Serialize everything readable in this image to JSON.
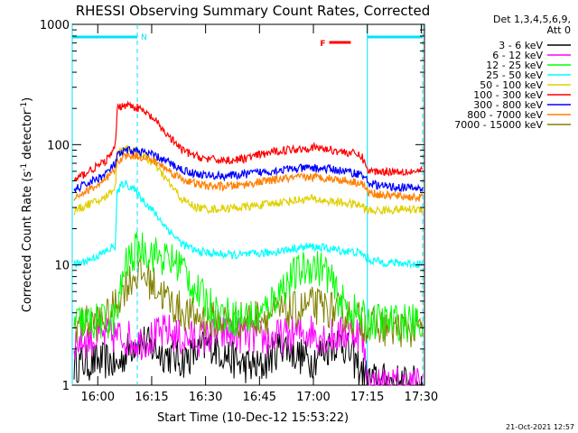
{
  "chart_data": {
    "type": "line",
    "title": "RHESSI Observing Summary Count Rates, Corrected",
    "xlabel": "Start Time (10-Dec-12 15:53:22)",
    "ylabel_main": "Corrected Count Rate (s",
    "ylabel_sup1": "-1",
    "ylabel_mid": " detector",
    "ylabel_sup2": "-1",
    "ylabel_end": ")",
    "yscale": "log",
    "xlim_min": [
      -0.5,
      97.5
    ],
    "ylim": [
      1,
      1000
    ],
    "x_ticks": [
      {
        "label": "16:00",
        "min": 6.6
      },
      {
        "label": "16:15",
        "min": 21.6
      },
      {
        "label": "16:30",
        "min": 36.6
      },
      {
        "label": "16:45",
        "min": 51.6
      },
      {
        "label": "17:00",
        "min": 66.6
      },
      {
        "label": "17:15",
        "min": 81.6
      },
      {
        "label": "17:30",
        "min": 96.6
      }
    ],
    "y_ticks": [
      {
        "label": "1",
        "value": 1
      },
      {
        "label": "10",
        "value": 10
      },
      {
        "label": "100",
        "value": 100
      },
      {
        "label": "1000",
        "value": 1000
      }
    ],
    "legend_header": [
      "Det 1,3,4,5,6,9,",
      "Att 0"
    ],
    "legend_placement": "right",
    "series": [
      {
        "name": "3 - 6 keV",
        "color": "#000000",
        "x": [
          0,
          10,
          12,
          14,
          18,
          22,
          30,
          38,
          46,
          52,
          58,
          62,
          66,
          70,
          74,
          78,
          80,
          82,
          97
        ],
        "y": [
          1.5,
          1.6,
          1.4,
          1.8,
          2.5,
          2.0,
          1.6,
          2.2,
          1.5,
          1.4,
          2.2,
          1.8,
          1.6,
          2.0,
          2.4,
          1.6,
          1.3,
          1.1,
          1.0
        ]
      },
      {
        "name": "6 - 12 keV",
        "color": "#ff00ff",
        "x": [
          0,
          10,
          14,
          18,
          22,
          26,
          30,
          36,
          42,
          48,
          54,
          60,
          66,
          70,
          74,
          78,
          80,
          82,
          97
        ],
        "y": [
          2.3,
          2.6,
          2.5,
          2.3,
          2.5,
          2.8,
          2.4,
          2.5,
          2.7,
          2.6,
          2.4,
          2.6,
          2.8,
          2.5,
          2.6,
          2.9,
          2.6,
          1.0,
          1.0
        ]
      },
      {
        "name": "12 - 25 keV",
        "color": "#00ff00",
        "x": [
          0,
          10,
          12,
          14,
          18,
          22,
          26,
          30,
          34,
          40,
          46,
          52,
          58,
          62,
          66,
          70,
          74,
          78,
          80,
          82,
          97
        ],
        "y": [
          3.3,
          3.4,
          3.8,
          9.5,
          14.0,
          12.5,
          11.0,
          10.0,
          6.0,
          4.0,
          3.6,
          3.8,
          6.5,
          8.5,
          10.0,
          9.0,
          5.0,
          4.0,
          3.6,
          3.4,
          3.3
        ]
      },
      {
        "name": "25 - 50 keV",
        "color": "#00ffff",
        "x": [
          0,
          4,
          8,
          10,
          11.5,
          12,
          13,
          14,
          16,
          18,
          22,
          26,
          30,
          34,
          38,
          42,
          46,
          50,
          54,
          58,
          62,
          66,
          70,
          74,
          78,
          80,
          82,
          86,
          92,
          97
        ],
        "y": [
          10.0,
          11.0,
          12.5,
          13.5,
          14.5,
          40.0,
          45.0,
          48.0,
          44.0,
          38.0,
          28.0,
          20.0,
          15.0,
          13.0,
          12.5,
          12.2,
          12.0,
          12.3,
          12.6,
          13.2,
          13.8,
          14.2,
          13.8,
          13.2,
          12.8,
          12.5,
          11.0,
          10.5,
          10.3,
          10.2
        ]
      },
      {
        "name": "50 - 100 keV",
        "color": "#e0d000",
        "x": [
          0,
          4,
          8,
          10,
          11.5,
          12,
          13,
          14,
          16,
          18,
          22,
          26,
          30,
          34,
          38,
          42,
          46,
          50,
          54,
          58,
          62,
          66,
          70,
          74,
          78,
          80,
          82,
          86,
          92,
          97
        ],
        "y": [
          28.0,
          32.0,
          35.0,
          40.0,
          45.0,
          85.0,
          90.0,
          95.0,
          90.0,
          85.0,
          70.0,
          50.0,
          35.0,
          30.0,
          29.0,
          29.5,
          30.0,
          31.0,
          32.0,
          33.5,
          34.5,
          35.5,
          34.0,
          33.0,
          32.0,
          31.0,
          28.0,
          28.5,
          29.0,
          29.0
        ]
      },
      {
        "name": "100 - 300 keV",
        "color": "#ff0000",
        "x": [
          0,
          4,
          8,
          10,
          11.5,
          12,
          13,
          14,
          16,
          18,
          22,
          26,
          30,
          34,
          38,
          42,
          46,
          50,
          54,
          58,
          62,
          66,
          70,
          74,
          78,
          80,
          82,
          86,
          92,
          97
        ],
        "y": [
          50.0,
          60.0,
          70.0,
          80.0,
          95.0,
          200.0,
          210.0,
          215.0,
          210.0,
          200.0,
          165.0,
          120.0,
          90.0,
          80.0,
          75.0,
          74.0,
          75.0,
          80.0,
          85.0,
          90.0,
          92.0,
          95.0,
          92.0,
          88.0,
          84.0,
          80.0,
          60.0,
          60.0,
          60.0,
          60.0
        ]
      },
      {
        "name": "300 - 800 keV",
        "color": "#0000ff",
        "x": [
          0,
          4,
          8,
          10,
          11.5,
          12,
          13,
          14,
          16,
          18,
          22,
          26,
          30,
          34,
          38,
          42,
          46,
          50,
          54,
          58,
          62,
          66,
          70,
          74,
          78,
          80,
          82,
          86,
          92,
          97
        ],
        "y": [
          42.0,
          48.0,
          55.0,
          62.0,
          70.0,
          80.0,
          84.0,
          88.0,
          90.0,
          88.0,
          82.0,
          72.0,
          62.0,
          57.0,
          55.0,
          55.0,
          56.0,
          58.0,
          60.0,
          62.0,
          63.0,
          64.0,
          63.0,
          61.0,
          58.0,
          57.0,
          48.0,
          45.0,
          44.0,
          43.0
        ]
      },
      {
        "name": "800 - 7000 keV",
        "color": "#ff8000",
        "x": [
          0,
          4,
          8,
          10,
          11.5,
          12,
          13,
          14,
          16,
          18,
          22,
          26,
          30,
          34,
          38,
          42,
          46,
          50,
          54,
          58,
          62,
          66,
          70,
          74,
          78,
          80,
          82,
          86,
          92,
          97
        ],
        "y": [
          36.0,
          42.0,
          48.0,
          55.0,
          62.0,
          72.0,
          76.0,
          80.0,
          82.0,
          80.0,
          74.0,
          62.0,
          52.0,
          47.0,
          45.0,
          45.0,
          46.0,
          48.0,
          50.0,
          52.0,
          53.0,
          54.0,
          53.0,
          51.0,
          49.0,
          48.0,
          40.0,
          38.0,
          37.0,
          36.0
        ]
      },
      {
        "name": "7000 - 15000 keV",
        "color": "#808000",
        "x": [
          0,
          6,
          10,
          12,
          14,
          16,
          18,
          20,
          24,
          28,
          32,
          38,
          44,
          50,
          56,
          62,
          66,
          70,
          74,
          78,
          80,
          82,
          86,
          97
        ],
        "y": [
          3.2,
          3.3,
          3.8,
          5.0,
          6.5,
          7.8,
          8.5,
          8.0,
          6.0,
          4.5,
          3.8,
          3.5,
          3.4,
          3.6,
          4.0,
          4.2,
          4.6,
          4.4,
          4.0,
          3.6,
          3.4,
          3.1,
          3.0,
          2.9
        ]
      }
    ],
    "markers": [
      {
        "type": "attenuator-in",
        "label": "",
        "color": "#00e0ff",
        "x0": -0.5,
        "x1": 17.6
      },
      {
        "type": "attenuator-in",
        "label": "",
        "color": "#00e0ff",
        "x0": 81.6,
        "x1": 97.0
      },
      {
        "type": "night",
        "label": "N",
        "color": "#00e0ff",
        "at": 17.6
      },
      {
        "type": "flare",
        "label": "F",
        "color": "#ff0000",
        "x0": 71.0,
        "x1": 77.0
      }
    ],
    "vlines": [
      {
        "x": -0.5,
        "color": "#00e0ff",
        "style": "solid"
      },
      {
        "x": 17.6,
        "color": "#00e0ff",
        "style": "dashed"
      },
      {
        "x": 81.6,
        "color": "#00e0ff",
        "style": "solid"
      },
      {
        "x": 97.0,
        "color": "#00e0ff",
        "style": "dashed"
      }
    ]
  },
  "footer_timestamp": "21-Oct-2021 12:57"
}
